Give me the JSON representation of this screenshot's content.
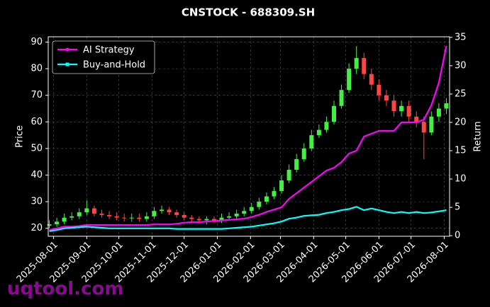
{
  "chart_data": {
    "type": "candlestick",
    "title": "CNSTOCK - 688309.SH",
    "ylabel": "Price",
    "y2label": "Return",
    "watermark": "uqtool.com",
    "x": [
      "2025-07-28",
      "2025-08-04",
      "2025-08-11",
      "2025-08-18",
      "2025-08-25",
      "2025-09-01",
      "2025-09-08",
      "2025-09-15",
      "2025-09-22",
      "2025-09-29",
      "2025-10-06",
      "2025-10-13",
      "2025-10-20",
      "2025-10-27",
      "2025-11-03",
      "2025-11-10",
      "2025-11-17",
      "2025-11-24",
      "2025-12-01",
      "2025-12-08",
      "2025-12-15",
      "2025-12-22",
      "2025-12-29",
      "2026-01-05",
      "2026-01-12",
      "2026-01-19",
      "2026-01-26",
      "2026-02-02",
      "2026-02-09",
      "2026-02-16",
      "2026-02-23",
      "2026-03-02",
      "2026-03-09",
      "2026-03-16",
      "2026-03-23",
      "2026-03-30",
      "2026-04-06",
      "2026-04-13",
      "2026-04-20",
      "2026-04-27",
      "2026-05-04",
      "2026-05-11",
      "2026-05-18",
      "2026-05-25",
      "2026-06-01",
      "2026-06-08",
      "2026-06-15",
      "2026-06-22",
      "2026-06-29",
      "2026-07-06",
      "2026-07-13",
      "2026-07-20",
      "2026-07-27",
      "2026-08-03"
    ],
    "open": [
      21,
      21.5,
      22.5,
      24,
      24.5,
      26,
      27.5,
      25.5,
      25,
      24.5,
      24,
      23.8,
      24,
      23.5,
      24.5,
      26.5,
      27,
      26,
      25,
      24,
      23.5,
      23,
      23.5,
      23,
      24,
      24.5,
      25.5,
      26.5,
      28,
      30,
      32,
      34,
      38,
      42,
      46,
      50,
      55,
      57,
      60,
      66,
      72,
      80,
      84,
      78,
      74,
      70,
      68,
      64,
      66,
      62,
      60,
      56,
      62,
      65
    ],
    "high": [
      23,
      24,
      25.5,
      26,
      27.5,
      30.5,
      28.5,
      27,
      26.5,
      26,
      25.5,
      25.5,
      25.5,
      26,
      28,
      28.5,
      28,
      27,
      26,
      25,
      24.5,
      24.5,
      24.5,
      25.5,
      26,
      27,
      28,
      29.5,
      31.5,
      33.5,
      35.5,
      40,
      44,
      48,
      52,
      57,
      59,
      62,
      68,
      74,
      82,
      88.5,
      86,
      80,
      76,
      72,
      70,
      68,
      68,
      64,
      62,
      64,
      67,
      69
    ],
    "low": [
      20,
      20.5,
      21.5,
      23,
      23.5,
      25,
      24.5,
      24,
      23.5,
      23,
      22.5,
      22.5,
      22.5,
      22.5,
      23.5,
      25.5,
      25,
      24,
      23,
      22.5,
      22,
      21.5,
      22,
      22,
      23,
      23.5,
      24.5,
      25.5,
      27,
      29,
      31,
      33,
      37,
      41,
      45,
      49,
      54,
      56,
      59,
      65,
      71,
      78,
      76,
      72,
      68,
      66,
      62,
      62,
      60,
      58,
      46,
      55,
      60,
      63
    ],
    "close": [
      21.5,
      22.5,
      24,
      24.5,
      26,
      27.5,
      25.5,
      25,
      24.5,
      24,
      23.8,
      24,
      23.5,
      24.5,
      26.5,
      27,
      26,
      25,
      24,
      23.5,
      23,
      23.5,
      23,
      24,
      24.5,
      25.5,
      26.5,
      28,
      30,
      32,
      34,
      38,
      42,
      46,
      50,
      55,
      57,
      60,
      66,
      72,
      80,
      84,
      78,
      74,
      70,
      68,
      64,
      66,
      62,
      60,
      56,
      62,
      65,
      67
    ],
    "up_color": "#44ee44",
    "down_color": "#ff4444",
    "series": [
      {
        "name": "AI Strategy",
        "color": "#ff00ff",
        "axis": "y2",
        "values": [
          1,
          1.3,
          1.6,
          1.6,
          1.7,
          1.9,
          1.9,
          1.9,
          1.9,
          1.9,
          1.9,
          1.9,
          1.9,
          1.9,
          2,
          2,
          2,
          2.1,
          2.3,
          2.4,
          2.4,
          2.5,
          2.6,
          2.7,
          2.8,
          2.9,
          3,
          3.3,
          3.7,
          4.2,
          4.6,
          5,
          6.5,
          7.5,
          8.5,
          9.5,
          10.5,
          11.5,
          12,
          13,
          14.5,
          15,
          17.5,
          18,
          18.5,
          18.5,
          18.5,
          20,
          20,
          20,
          20.5,
          23,
          27,
          33.5
        ]
      },
      {
        "name": "Buy-and-Hold",
        "color": "#00ffff",
        "axis": "y2",
        "values": [
          0.8,
          1,
          1.3,
          1.4,
          1.5,
          1.6,
          1.5,
          1.4,
          1.3,
          1.3,
          1.3,
          1.3,
          1.3,
          1.3,
          1.3,
          1.3,
          1.3,
          1.2,
          1.2,
          1.2,
          1.2,
          1.2,
          1.2,
          1.2,
          1.3,
          1.4,
          1.5,
          1.6,
          1.8,
          2,
          2.2,
          2.5,
          3,
          3.2,
          3.5,
          3.6,
          3.7,
          4,
          4.2,
          4.5,
          4.7,
          5.1,
          4.5,
          4.8,
          4.5,
          4.2,
          4,
          4.2,
          4,
          4.2,
          4,
          4.1,
          4.3,
          4.5
        ]
      }
    ],
    "xlim": [
      "2025-07-27",
      "2026-08-06"
    ],
    "xticks": [
      "2025-08-01",
      "2025-09-01",
      "2025-10-01",
      "2025-11-01",
      "2025-12-01",
      "2026-01-01",
      "2026-02-01",
      "2026-03-01",
      "2026-04-01",
      "2026-05-01",
      "2026-06-01",
      "2026-07-01",
      "2026-08-01"
    ],
    "ylim": [
      17,
      92
    ],
    "yticks": [
      20,
      30,
      40,
      50,
      60,
      70,
      80,
      90
    ],
    "y2lim": [
      -0.1,
      35.1
    ],
    "y2ticks": [
      0,
      5,
      10,
      15,
      20,
      25,
      30,
      35
    ],
    "grid": true,
    "legend": "upper left"
  }
}
